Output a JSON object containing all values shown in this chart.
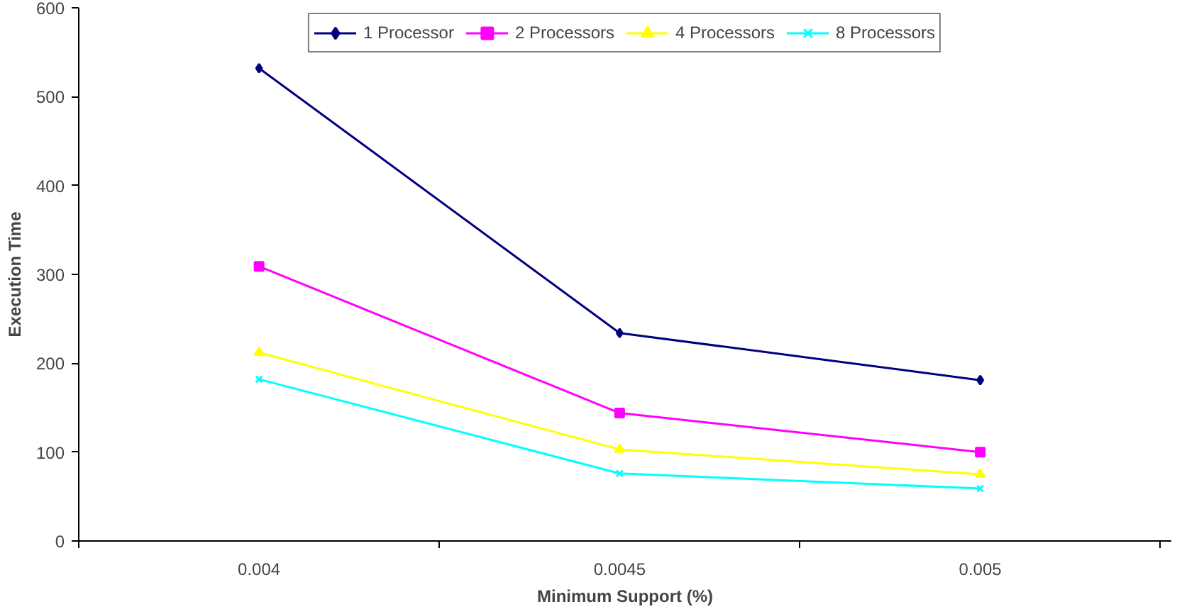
{
  "chart_data": {
    "type": "line",
    "xlabel": "Minimum Support (%)",
    "ylabel": "Execution Time",
    "categories": [
      "0.004",
      "0.0045",
      "0.005"
    ],
    "series": [
      {
        "name": "1 Processor",
        "color": "#000080",
        "marker": "diamond",
        "values": [
          532,
          234,
          181
        ]
      },
      {
        "name": "2 Processors",
        "color": "#ff00ff",
        "marker": "square",
        "values": [
          309,
          144,
          100
        ]
      },
      {
        "name": "4 Processors",
        "color": "#ffff00",
        "marker": "triangle",
        "values": [
          212,
          103,
          75
        ]
      },
      {
        "name": "8 Processors",
        "color": "#00ffff",
        "marker": "x",
        "values": [
          182,
          76,
          59
        ]
      }
    ],
    "ylim": [
      0,
      600
    ],
    "yticks": [
      0,
      100,
      200,
      300,
      400,
      500,
      600
    ],
    "grid": false,
    "legend": "top",
    "line_style": "solid"
  }
}
